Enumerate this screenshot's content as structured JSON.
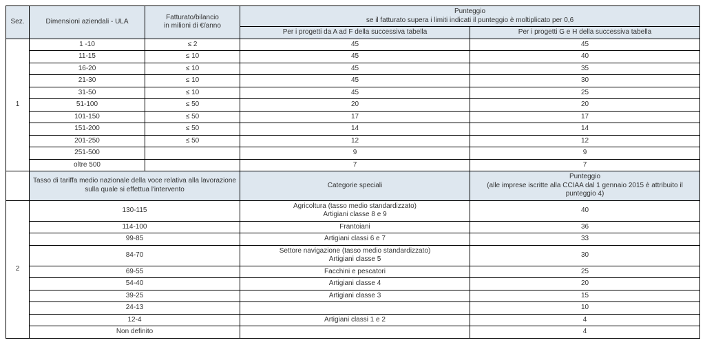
{
  "headers": {
    "sez": "Sez.",
    "dim": "Dimensioni aziendali - ULA",
    "fatturato": "Fatturato/bilancio\nin milioni di €/anno",
    "punteggio_top": "Punteggio\nse il fatturato supera i limiti indicati il punteggio è moltiplicato per 0,6",
    "proj_af": "Per i progetti da A ad F della successiva tabella",
    "proj_gh": "Per i progetti G e H della successiva tabella"
  },
  "section1": {
    "num": "1",
    "rows": [
      {
        "dim": "1 -10",
        "fat": "≤ 2",
        "a": "45",
        "b": "45"
      },
      {
        "dim": "11-15",
        "fat": "≤ 10",
        "a": "45",
        "b": "40"
      },
      {
        "dim": "16-20",
        "fat": "≤ 10",
        "a": "45",
        "b": "35"
      },
      {
        "dim": "21-30",
        "fat": "≤ 10",
        "a": "45",
        "b": "30"
      },
      {
        "dim": "31-50",
        "fat": "≤ 10",
        "a": "45",
        "b": "25"
      },
      {
        "dim": "51-100",
        "fat": "≤ 50",
        "a": "20",
        "b": "20"
      },
      {
        "dim": "101-150",
        "fat": "≤ 50",
        "a": "17",
        "b": "17"
      },
      {
        "dim": "151-200",
        "fat": "≤ 50",
        "a": "14",
        "b": "14"
      },
      {
        "dim": "201-250",
        "fat": "≤ 50",
        "a": "12",
        "b": "12"
      },
      {
        "dim": "251-500",
        "fat": "",
        "a": "9",
        "b": "9"
      },
      {
        "dim": "oltre 500",
        "fat": "",
        "a": "7",
        "b": "7"
      }
    ]
  },
  "section2": {
    "num": "2",
    "sub": {
      "tasso": "Tasso di tariffa medio nazionale della voce relativa alla lavorazione sulla quale si effettua l'intervento",
      "cat": "Categorie speciali",
      "punt": "Punteggio\n(alle imprese iscritte alla CCIAA dal 1 gennaio 2015 è attribuito il punteggio 4)"
    },
    "rows": [
      {
        "t": "130-115",
        "c": "Agricoltura (tasso medio standardizzato)\nArtigiani classe 8 e 9",
        "p": "40"
      },
      {
        "t": "114-100",
        "c": "Frantoiani",
        "p": "36"
      },
      {
        "t": "99-85",
        "c": "Artigiani classi 6 e 7",
        "p": "33"
      },
      {
        "t": "84-70",
        "c": "Settore navigazione (tasso medio standardizzato)\nArtigiani classe 5",
        "p": "30"
      },
      {
        "t": "69-55",
        "c": "Facchini e pescatori",
        "p": "25"
      },
      {
        "t": "54-40",
        "c": "Artigiani classe 4",
        "p": "20"
      },
      {
        "t": "39-25",
        "c": "Artigiani classe 3",
        "p": "15"
      },
      {
        "t": "24-13",
        "c": "",
        "p": "10"
      },
      {
        "t": "12-4",
        "c": "Artigiani classi 1 e 2",
        "p": "4"
      },
      {
        "t": "Non definito",
        "c": "",
        "p": "4"
      }
    ]
  }
}
